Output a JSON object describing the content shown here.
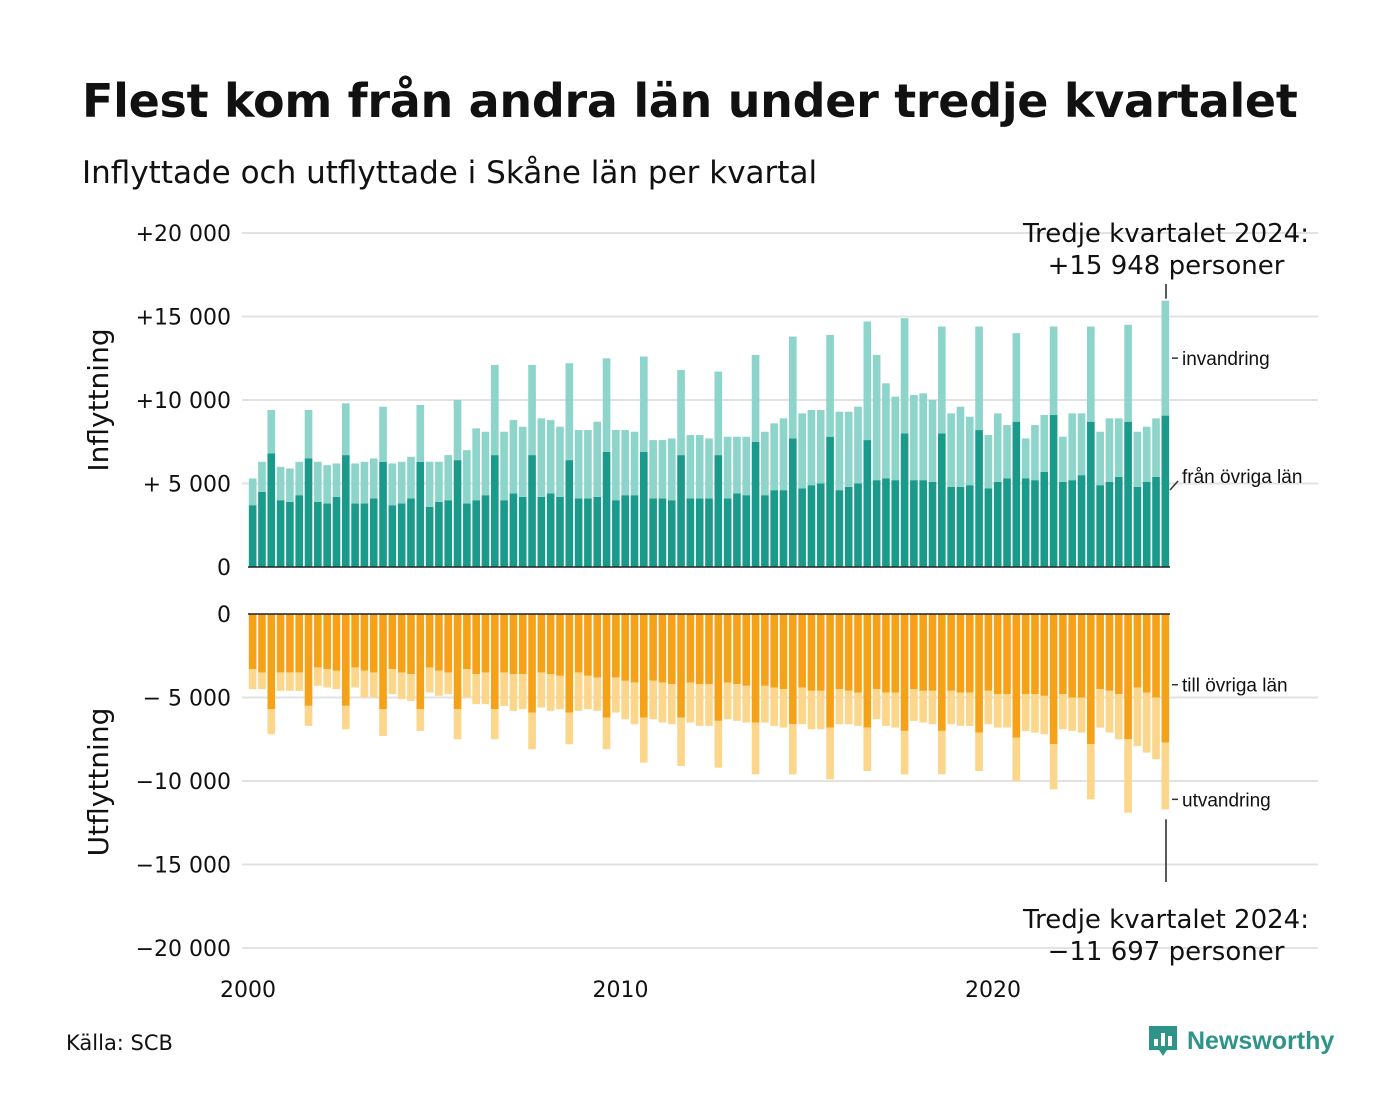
{
  "header": {
    "title": "Flest kom från andra län under tredje kvartalet",
    "subtitle": "Inflyttade och utflyttade i Skåne län per kvartal"
  },
  "footer": {
    "source": "Källa: SCB",
    "brand": "Newsworthy"
  },
  "colors": {
    "inflow_domestic": "#1a9a8a",
    "inflow_immigration": "#8dd4cb",
    "outflow_domestic": "#f5a219",
    "outflow_emigration": "#fbd68b",
    "brand": "#2e9489"
  },
  "icons": {
    "brand_logo": "newsworthy-logo-icon"
  },
  "chart_data": [
    {
      "type": "bar",
      "stacked": true,
      "ylabel": "Inflyttning",
      "ylim": [
        0,
        20000
      ],
      "y_ticks": [
        0,
        5000,
        10000,
        15000,
        20000
      ],
      "y_tick_labels": [
        "0",
        "+ 5 000",
        "+10 000",
        "+15 000",
        "+20 000"
      ],
      "grid": true,
      "annotation": {
        "lines": [
          "Tredje kvartalet 2024:",
          "+15 948 personer"
        ]
      },
      "series": [
        {
          "name": "från övriga län",
          "values": [
            3700,
            4500,
            6800,
            4000,
            3900,
            4300,
            6500,
            3900,
            3800,
            4200,
            6700,
            3800,
            3800,
            4100,
            6300,
            3700,
            3800,
            4100,
            6300,
            3600,
            3900,
            4000,
            6400,
            3800,
            4000,
            4300,
            6700,
            4000,
            4400,
            4200,
            6700,
            4200,
            4400,
            4200,
            6400,
            4100,
            4100,
            4200,
            6900,
            4000,
            4300,
            4300,
            6900,
            4100,
            4100,
            4000,
            6700,
            4100,
            4100,
            4100,
            6700,
            4100,
            4400,
            4300,
            7500,
            4300,
            4600,
            4600,
            7700,
            4700,
            4900,
            5000,
            7800,
            4600,
            4800,
            5000,
            7600,
            5200,
            5300,
            5200,
            8000,
            5200,
            5200,
            5100,
            8000,
            4800,
            4800,
            4900,
            8200,
            4700,
            5100,
            5300,
            8700,
            5300,
            5200,
            5700,
            9100,
            5100,
            5200,
            5500,
            8700,
            4900,
            5100,
            5400,
            8700,
            4800,
            5100,
            5400,
            9066
          ]
        },
        {
          "name": "invandring",
          "values": [
            1600,
            1800,
            2600,
            2000,
            2000,
            2000,
            2900,
            2400,
            2300,
            2000,
            3100,
            2400,
            2500,
            2400,
            3300,
            2500,
            2500,
            2500,
            3400,
            2700,
            2400,
            2700,
            3600,
            3200,
            4300,
            3800,
            5400,
            4100,
            4400,
            4200,
            5400,
            4700,
            4400,
            4200,
            5800,
            4100,
            4100,
            4500,
            5600,
            4200,
            3900,
            3800,
            5700,
            3500,
            3500,
            3700,
            5100,
            3800,
            3800,
            3600,
            5000,
            3700,
            3400,
            3500,
            5200,
            3800,
            4000,
            4300,
            6100,
            4500,
            4500,
            4400,
            6100,
            4700,
            4500,
            4600,
            7100,
            7500,
            5700,
            5000,
            6900,
            5100,
            5200,
            4900,
            6400,
            4400,
            4800,
            4100,
            6200,
            3200,
            4100,
            3200,
            5300,
            2400,
            3300,
            3400,
            5300,
            2700,
            4000,
            3700,
            5700,
            3200,
            3800,
            3500,
            5800,
            3300,
            3300,
            3500,
            6882
          ]
        }
      ]
    },
    {
      "type": "bar",
      "stacked": true,
      "ylabel": "Utflyttning",
      "ylim": [
        -20000,
        0
      ],
      "y_ticks": [
        0,
        -5000,
        -10000,
        -15000,
        -20000
      ],
      "y_tick_labels": [
        "0",
        "− 5 000",
        "−10 000",
        "−15 000",
        "−20 000"
      ],
      "x_ticks": [
        2000,
        2010,
        2020
      ],
      "x_tick_labels": [
        "2000",
        "2010",
        "2020"
      ],
      "grid": true,
      "annotation": {
        "lines": [
          "Tredje kvartalet 2024:",
          "−11 697 personer"
        ]
      },
      "series": [
        {
          "name": "till övriga län",
          "values": [
            -3300,
            -3500,
            -5700,
            -3500,
            -3500,
            -3500,
            -5500,
            -3200,
            -3300,
            -3400,
            -5500,
            -3200,
            -3400,
            -3500,
            -5700,
            -3300,
            -3500,
            -3600,
            -5700,
            -3200,
            -3400,
            -3500,
            -5700,
            -3300,
            -3600,
            -3500,
            -5700,
            -3500,
            -3600,
            -3600,
            -5900,
            -3500,
            -3600,
            -3700,
            -5900,
            -3500,
            -3700,
            -3800,
            -6200,
            -3800,
            -4000,
            -4100,
            -6200,
            -4000,
            -4100,
            -4200,
            -6200,
            -4100,
            -4200,
            -4200,
            -6400,
            -4100,
            -4200,
            -4300,
            -6500,
            -4300,
            -4400,
            -4500,
            -6600,
            -4400,
            -4600,
            -4600,
            -6800,
            -4500,
            -4600,
            -4700,
            -6800,
            -4500,
            -4700,
            -4700,
            -7000,
            -4500,
            -4600,
            -4600,
            -7000,
            -4600,
            -4700,
            -4700,
            -7100,
            -4600,
            -4800,
            -4800,
            -7400,
            -4800,
            -4800,
            -4900,
            -7800,
            -4800,
            -5000,
            -5000,
            -7800,
            -4500,
            -4600,
            -4800,
            -7500,
            -4400,
            -4700,
            -5000,
            -7700
          ]
        },
        {
          "name": "utvandring",
          "values": [
            -1200,
            -1000,
            -1500,
            -1100,
            -1100,
            -1100,
            -1200,
            -1100,
            -1100,
            -1100,
            -1400,
            -1200,
            -1600,
            -1500,
            -1600,
            -1500,
            -1600,
            -1600,
            -1300,
            -1500,
            -1500,
            -1300,
            -1800,
            -1700,
            -1800,
            -1900,
            -1800,
            -2000,
            -2200,
            -2100,
            -2200,
            -2100,
            -2200,
            -2000,
            -1900,
            -2300,
            -2000,
            -2000,
            -1900,
            -2100,
            -2300,
            -2500,
            -2700,
            -2300,
            -2400,
            -2400,
            -2900,
            -2400,
            -2500,
            -2500,
            -2800,
            -2200,
            -2200,
            -2200,
            -3100,
            -2200,
            -2300,
            -2300,
            -3000,
            -2200,
            -2300,
            -2300,
            -3100,
            -2100,
            -2000,
            -2000,
            -2600,
            -1800,
            -2000,
            -2100,
            -2600,
            -1900,
            -1900,
            -2000,
            -2600,
            -2000,
            -2000,
            -2000,
            -2300,
            -2000,
            -2000,
            -2000,
            -2600,
            -2200,
            -2300,
            -2300,
            -2700,
            -2100,
            -2000,
            -2100,
            -3300,
            -2300,
            -2500,
            -2700,
            -4400,
            -3500,
            -3600,
            -3700,
            -3997
          ]
        }
      ]
    }
  ]
}
